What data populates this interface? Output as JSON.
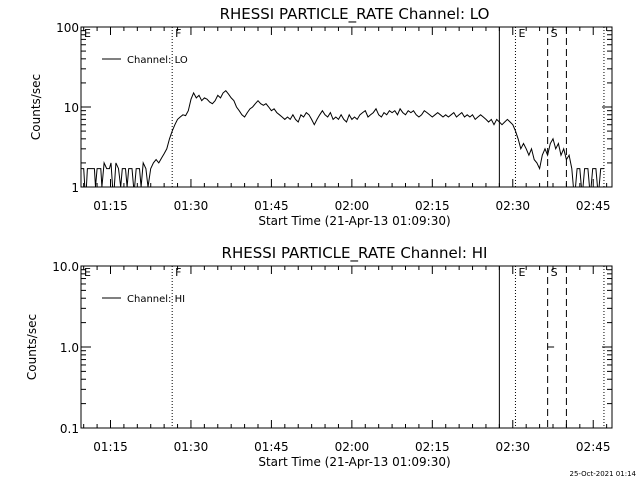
{
  "chart_data": [
    {
      "type": "line",
      "title": "RHESSI PARTICLE_RATE Channel: LO",
      "xlabel": "Start Time (21-Apr-13 01:09:30)",
      "ylabel": "Counts/sec",
      "x_unit": "minutes after 01:09:30",
      "xlim": [
        0,
        99
      ],
      "ylim": [
        1,
        100
      ],
      "y_scale": "log",
      "x_tick_labels": [
        "01:15",
        "01:30",
        "01:45",
        "02:00",
        "02:15",
        "02:30",
        "02:45"
      ],
      "y_tick_labels": [
        "1",
        "10",
        "100"
      ],
      "y_ticks": [
        1,
        10,
        100
      ],
      "legend": {
        "label": "Channel: LO",
        "placement": "top-left"
      },
      "markers": [
        {
          "label": "E",
          "x": 0,
          "style": "solid",
          "label_shown": true
        },
        {
          "label": "F",
          "x": 17,
          "style": "dotted",
          "label_shown": true
        },
        {
          "label": "",
          "x": 78,
          "style": "solid",
          "label_shown": false
        },
        {
          "label": "E",
          "x": 81,
          "style": "dotted",
          "label_shown": true
        },
        {
          "label": "S",
          "x": 87,
          "style": "dashed",
          "label_shown": true
        },
        {
          "label": "",
          "x": 90.5,
          "style": "dashed",
          "label_shown": false
        },
        {
          "label": "",
          "x": 97.5,
          "style": "dotted",
          "label_shown": false
        }
      ],
      "series": [
        {
          "name": "Channel: LO",
          "segments": [
            [
              [
                0,
                1.7
              ],
              [
                0.5,
                1.7
              ],
              [
                0.7,
                1.0
              ],
              [
                1.0,
                1.0
              ],
              [
                1.2,
                1.7
              ],
              [
                2.5,
                1.7
              ],
              [
                2.7,
                1.0
              ],
              [
                3.0,
                1.7
              ],
              [
                3.7,
                1.7
              ],
              [
                3.9,
                1.0
              ],
              [
                4.3,
                2.0
              ],
              [
                4.8,
                1.7
              ],
              [
                5.3,
                1.7
              ],
              [
                5.6,
                2.0
              ],
              [
                5.9,
                1.0
              ],
              [
                6.2,
                1.0
              ],
              [
                6.5,
                2.0
              ],
              [
                7.0,
                1.7
              ],
              [
                7.4,
                1.0
              ],
              [
                7.7,
                1.7
              ],
              [
                8.3,
                1.7
              ],
              [
                8.6,
                1.0
              ],
              [
                8.9,
                1.7
              ],
              [
                9.5,
                1.7
              ],
              [
                9.8,
                1.0
              ],
              [
                10.0,
                1.0
              ],
              [
                10.3,
                1.7
              ],
              [
                10.9,
                1.7
              ],
              [
                11.2,
                1.0
              ],
              [
                11.6,
                2.0
              ],
              [
                12.1,
                1.7
              ],
              [
                12.5,
                1.0
              ],
              [
                13.0,
                1.7
              ],
              [
                13.5,
                2.0
              ],
              [
                14.0,
                2.2
              ],
              [
                14.5,
                2.0
              ],
              [
                15.0,
                2.3
              ],
              [
                15.5,
                2.6
              ],
              [
                16.0,
                3.0
              ],
              [
                16.5,
                4.0
              ],
              [
                17.0,
                5.0
              ],
              [
                17.5,
                6.0
              ],
              [
                18.0,
                7.0
              ],
              [
                18.5,
                7.5
              ],
              [
                19.0,
                8.0
              ],
              [
                19.5,
                7.8
              ],
              [
                20.0,
                9.0
              ],
              [
                20.5,
                12.5
              ],
              [
                21.0,
                15.0
              ],
              [
                21.5,
                13.0
              ],
              [
                22.0,
                14.0
              ],
              [
                22.5,
                12.0
              ],
              [
                23.0,
                13.0
              ],
              [
                23.5,
                12.5
              ],
              [
                24.0,
                11.5
              ],
              [
                24.5,
                11.0
              ],
              [
                25.0,
                12.0
              ],
              [
                25.5,
                14.0
              ],
              [
                26.0,
                13.0
              ],
              [
                26.5,
                15.0
              ],
              [
                27.0,
                16.0
              ],
              [
                27.5,
                14.5
              ],
              [
                28.0,
                13.0
              ],
              [
                28.5,
                12.0
              ],
              [
                29.0,
                10.0
              ],
              [
                29.5,
                9.0
              ],
              [
                30.0,
                8.0
              ],
              [
                30.5,
                7.5
              ],
              [
                31.0,
                8.5
              ],
              [
                31.5,
                9.5
              ],
              [
                32.0,
                10.0
              ],
              [
                32.5,
                11.0
              ],
              [
                33.0,
                12.0
              ],
              [
                33.5,
                11.0
              ],
              [
                34.0,
                10.5
              ],
              [
                34.5,
                11.0
              ],
              [
                35.0,
                10.0
              ],
              [
                35.5,
                9.0
              ],
              [
                36.0,
                9.5
              ],
              [
                36.5,
                8.5
              ],
              [
                37.0,
                8.0
              ],
              [
                37.5,
                7.5
              ],
              [
                38.0,
                7.0
              ],
              [
                38.5,
                7.5
              ],
              [
                39.0,
                7.0
              ],
              [
                39.5,
                8.0
              ],
              [
                40.0,
                7.0
              ],
              [
                40.5,
                6.5
              ],
              [
                41.0,
                8.0
              ],
              [
                41.5,
                7.5
              ],
              [
                42.0,
                8.5
              ],
              [
                42.5,
                8.0
              ],
              [
                43.0,
                7.0
              ],
              [
                43.5,
                6.0
              ],
              [
                44.0,
                7.0
              ],
              [
                44.5,
                8.0
              ],
              [
                45.0,
                9.0
              ],
              [
                45.5,
                8.0
              ],
              [
                46.0,
                7.5
              ],
              [
                46.5,
                8.5
              ],
              [
                47.0,
                7.0
              ],
              [
                47.5,
                7.5
              ],
              [
                48.0,
                7.0
              ],
              [
                48.5,
                8.0
              ],
              [
                49.0,
                7.0
              ],
              [
                49.5,
                6.5
              ],
              [
                50.0,
                8.0
              ],
              [
                50.5,
                7.0
              ],
              [
                51.0,
                7.5
              ],
              [
                51.5,
                7.0
              ],
              [
                52.0,
                8.0
              ],
              [
                52.5,
                8.5
              ],
              [
                53.0,
                9.0
              ],
              [
                53.5,
                7.5
              ],
              [
                54.0,
                8.0
              ],
              [
                54.5,
                8.5
              ],
              [
                55.0,
                9.5
              ],
              [
                55.5,
                8.0
              ],
              [
                56.0,
                7.5
              ],
              [
                56.5,
                8.5
              ],
              [
                57.0,
                8.0
              ],
              [
                57.5,
                9.0
              ],
              [
                58.0,
                8.5
              ],
              [
                58.5,
                9.0
              ],
              [
                59.0,
                8.0
              ],
              [
                59.5,
                9.5
              ],
              [
                60.0,
                8.5
              ],
              [
                60.5,
                8.0
              ],
              [
                61.0,
                9.0
              ],
              [
                61.5,
                8.5
              ],
              [
                62.0,
                9.0
              ],
              [
                62.5,
                8.0
              ],
              [
                63.0,
                7.5
              ],
              [
                63.5,
                8.0
              ],
              [
                64.0,
                9.0
              ],
              [
                64.5,
                8.5
              ],
              [
                65.0,
                8.0
              ],
              [
                65.5,
                7.5
              ],
              [
                66.0,
                8.0
              ],
              [
                66.5,
                8.5
              ],
              [
                67.0,
                8.0
              ],
              [
                67.5,
                7.5
              ],
              [
                68.0,
                8.0
              ],
              [
                68.5,
                7.5
              ],
              [
                69.0,
                8.0
              ],
              [
                69.5,
                8.5
              ],
              [
                70.0,
                7.5
              ],
              [
                70.5,
                8.0
              ],
              [
                71.0,
                8.5
              ],
              [
                71.5,
                7.5
              ],
              [
                72.0,
                8.0
              ],
              [
                72.5,
                7.5
              ],
              [
                73.0,
                8.0
              ],
              [
                73.5,
                7.0
              ],
              [
                74.0,
                7.5
              ],
              [
                74.5,
                8.0
              ],
              [
                75.0,
                7.5
              ],
              [
                75.5,
                7.0
              ],
              [
                76.0,
                6.5
              ],
              [
                76.5,
                7.0
              ],
              [
                77.0,
                6.0
              ],
              [
                77.5,
                7.0
              ],
              [
                78.0,
                6.5
              ],
              [
                78.5,
                6.0
              ],
              [
                79.0,
                6.5
              ],
              [
                79.5,
                7.0
              ],
              [
                80.0,
                6.5
              ],
              [
                80.5,
                6.0
              ],
              [
                81.0,
                5.0
              ],
              [
                81.5,
                4.0
              ],
              [
                82.0,
                3.0
              ],
              [
                82.5,
                3.5
              ],
              [
                83.0,
                3.0
              ],
              [
                83.5,
                2.5
              ],
              [
                84.0,
                3.0
              ],
              [
                84.5,
                2.2
              ],
              [
                85.0,
                2.0
              ],
              [
                85.5,
                1.7
              ],
              [
                86.0,
                2.5
              ],
              [
                86.5,
                3.0
              ],
              [
                87.0,
                2.5
              ],
              [
                87.5,
                3.5
              ],
              [
                88.0,
                4.0
              ],
              [
                88.5,
                3.0
              ],
              [
                89.0,
                3.5
              ],
              [
                89.5,
                2.5
              ],
              [
                90.0,
                3.0
              ],
              [
                90.5,
                2.2
              ],
              [
                91.0,
                2.5
              ],
              [
                91.5,
                1.7
              ],
              [
                91.8,
                1.0
              ],
              [
                92.2,
                1.0
              ],
              [
                92.5,
                1.7
              ],
              [
                93.0,
                1.7
              ],
              [
                93.3,
                1.0
              ],
              [
                93.6,
                1.0
              ],
              [
                93.9,
                1.7
              ],
              [
                94.5,
                1.7
              ],
              [
                94.8,
                1.0
              ],
              [
                95.1,
                1.0
              ],
              [
                95.4,
                1.7
              ],
              [
                96.0,
                1.7
              ],
              [
                96.3,
                1.0
              ],
              [
                96.6,
                1.0
              ],
              [
                96.9,
                1.7
              ],
              [
                97.5,
                1.7
              ]
            ]
          ]
        }
      ]
    },
    {
      "type": "line",
      "title": "RHESSI PARTICLE_RATE Channel: HI",
      "xlabel": "Start Time (21-Apr-13 01:09:30)",
      "ylabel": "Counts/sec",
      "x_unit": "minutes after 01:09:30",
      "xlim": [
        0,
        99
      ],
      "ylim": [
        0.1,
        10
      ],
      "y_scale": "log",
      "x_tick_labels": [
        "01:15",
        "01:30",
        "01:45",
        "02:00",
        "02:15",
        "02:30",
        "02:45"
      ],
      "y_tick_labels": [
        "0.1",
        "1.0",
        "10.0"
      ],
      "y_ticks": [
        0.1,
        1,
        10
      ],
      "legend": {
        "label": "Channel: HI",
        "placement": "top-left"
      },
      "markers": [
        {
          "label": "E",
          "x": 0,
          "style": "solid",
          "label_shown": true
        },
        {
          "label": "F",
          "x": 17,
          "style": "dotted",
          "label_shown": true
        },
        {
          "label": "",
          "x": 78,
          "style": "solid",
          "label_shown": false
        },
        {
          "label": "E",
          "x": 81,
          "style": "dotted",
          "label_shown": true
        },
        {
          "label": "S",
          "x": 87,
          "style": "dashed",
          "label_shown": true
        },
        {
          "label": "",
          "x": 90.5,
          "style": "dashed",
          "label_shown": false
        },
        {
          "label": "",
          "x": 97.5,
          "style": "dotted",
          "label_shown": false
        }
      ],
      "series": [
        {
          "name": "Channel: HI",
          "segments": [
            [
              [
                87.0,
                1.0
              ],
              [
                88.2,
                1.0
              ]
            ]
          ]
        }
      ]
    }
  ],
  "footer": {
    "timestamp": "25-Oct-2021 01:14"
  }
}
